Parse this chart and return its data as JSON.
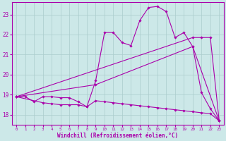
{
  "bg_color": "#cce8e8",
  "grid_color": "#aacccc",
  "line_color": "#aa00aa",
  "xlabel": "Windchill (Refroidissement éolien,°C)",
  "ylim": [
    17.5,
    23.6
  ],
  "xlim": [
    -0.5,
    23.5
  ],
  "yticks": [
    18,
    19,
    20,
    21,
    22,
    23
  ],
  "xticks": [
    0,
    1,
    2,
    3,
    4,
    5,
    6,
    7,
    8,
    9,
    10,
    11,
    12,
    13,
    14,
    15,
    16,
    17,
    18,
    19,
    20,
    21,
    22,
    23
  ],
  "series": [
    {
      "x": [
        0,
        1,
        2,
        3,
        4,
        5,
        6,
        7,
        8,
        9,
        10,
        11,
        12,
        13,
        14,
        15,
        16,
        17,
        18,
        19,
        20,
        21,
        22,
        23
      ],
      "y": [
        18.9,
        18.9,
        18.65,
        18.9,
        18.9,
        18.85,
        18.85,
        18.65,
        18.4,
        19.7,
        22.1,
        22.1,
        21.6,
        21.45,
        22.7,
        23.35,
        23.4,
        23.15,
        21.85,
        22.1,
        21.4,
        19.1,
        18.3,
        17.7
      ]
    },
    {
      "x": [
        0,
        20,
        21,
        22,
        23
      ],
      "y": [
        18.9,
        21.85,
        21.85,
        21.85,
        17.7
      ]
    },
    {
      "x": [
        0,
        9,
        20,
        23
      ],
      "y": [
        18.9,
        19.5,
        21.4,
        17.7
      ]
    },
    {
      "x": [
        0,
        3,
        4,
        5,
        6,
        7,
        8,
        9,
        10,
        11,
        12,
        13,
        14,
        15,
        16,
        17,
        18,
        19,
        20,
        21,
        22,
        23
      ],
      "y": [
        18.9,
        18.6,
        18.55,
        18.5,
        18.5,
        18.5,
        18.4,
        18.7,
        18.65,
        18.6,
        18.55,
        18.5,
        18.45,
        18.4,
        18.35,
        18.3,
        18.25,
        18.2,
        18.15,
        18.1,
        18.05,
        17.7
      ]
    }
  ]
}
